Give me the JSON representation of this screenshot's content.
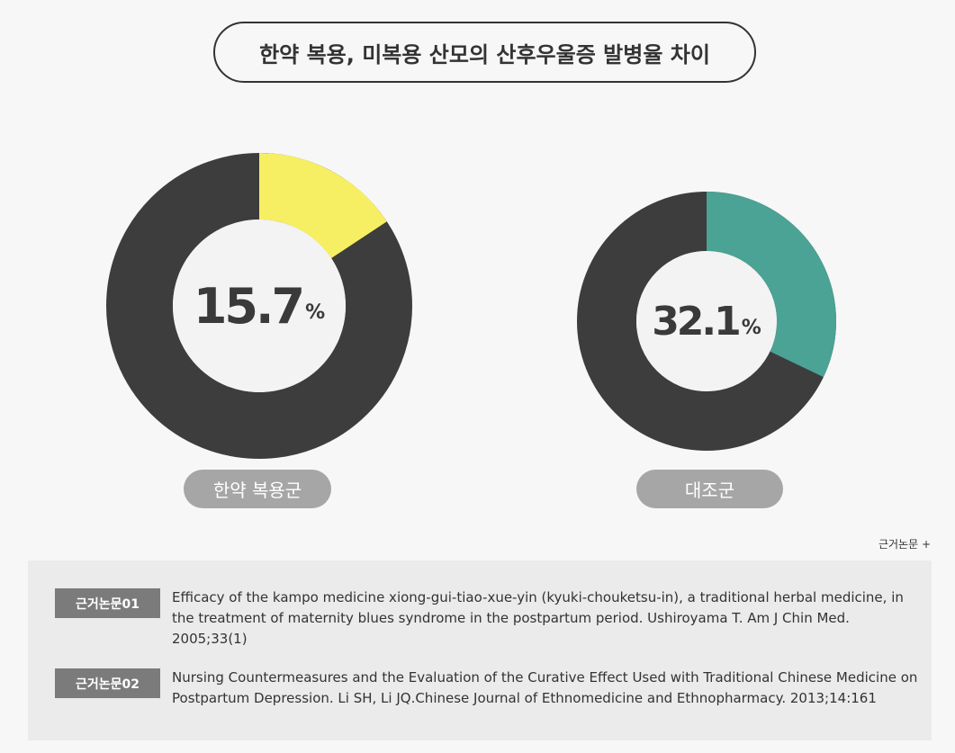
{
  "title": "한약 복용, 미복용 산모의 산후우울증 발병율 차이",
  "chart_data": [
    {
      "type": "pie",
      "group_label": "한약 복용군",
      "value": 15.7,
      "value_text": "15.7",
      "unit": "%",
      "highlight_color": "#f7ef63",
      "rest_color": "#3d3d3d"
    },
    {
      "type": "pie",
      "group_label": "대조군",
      "value": 32.1,
      "value_text": "32.1",
      "unit": "%",
      "highlight_color": "#4aa394",
      "rest_color": "#3d3d3d"
    }
  ],
  "references": {
    "toggle_label": "근거논문 +",
    "items": [
      {
        "tag": "근거논문01",
        "text": "Efficacy of the kampo medicine xiong-gui-tiao-xue-yin (kyuki-chouketsu-in), a traditional herbal medicine, in the treatment of maternity blues syndrome in the postpartum period. Ushiroyama T. Am J Chin Med. 2005;33(1)"
      },
      {
        "tag": "근거논문02",
        "text": "Nursing Countermeasures and the Evaluation of the Curative Effect Used with Traditional Chinese Medicine on Postpartum Depression. Li SH, Li JQ.Chinese Journal of Ethnomedicine and Ethnopharmacy. 2013;14:161"
      }
    ]
  }
}
